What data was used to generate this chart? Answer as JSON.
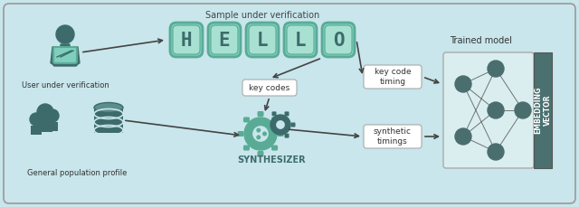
{
  "bg_color": "#c8e6eb",
  "dark_teal": "#3d6b6b",
  "medium_teal": "#5aab96",
  "light_teal_box": "#7ecfbe",
  "inner_box": "#a8e0d2",
  "node_color": "#4a6e6e",
  "embed_box_color": "#4a7070",
  "arrow_color": "#444444",
  "text_color": "#333333",
  "key_letters": [
    "H",
    "E",
    "L",
    "L",
    "O"
  ],
  "title": "Sample under verification",
  "trained_model_label": "Trained model",
  "embed_label": "EMBEDDING\nVECTOR",
  "synthesizer_label": "SYNTHESIZER",
  "key_codes_label": "key codes",
  "key_code_timing_label": "key code\ntiming",
  "synthetic_timings_label": "synthetic\ntimings",
  "user_label": "User under verification",
  "population_label": "General population profile",
  "figw": 6.4,
  "figh": 2.29,
  "dpi": 100
}
